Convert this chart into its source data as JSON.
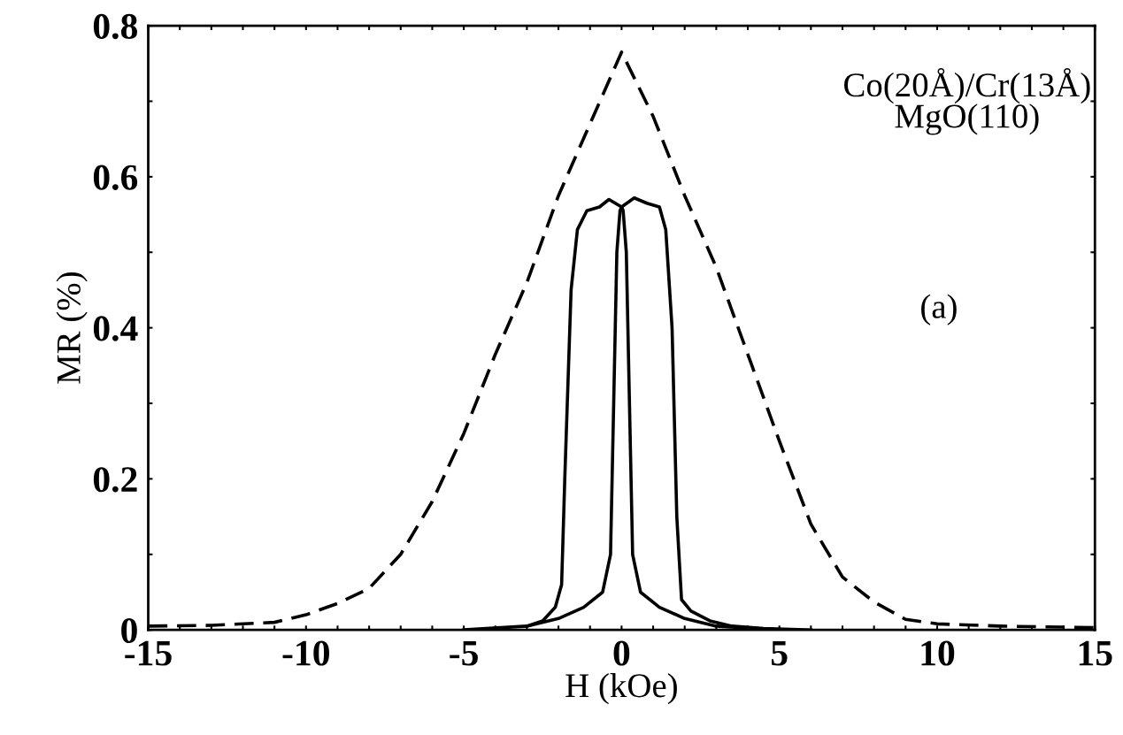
{
  "chart_data": {
    "type": "line",
    "xlabel": "H (kOe)",
    "ylabel": "MR (%)",
    "annotations": [
      "Co(20Å)/Cr(13Å)\nMgO(110)",
      "(a)"
    ],
    "xlim": [
      -15,
      15
    ],
    "ylim": [
      0,
      0.8
    ],
    "xticks": [
      -15,
      {
        "value": -14,
        "label": null
      },
      {
        "value": -13,
        "label": null
      },
      {
        "value": -12,
        "label": null
      },
      {
        "value": -11,
        "label": null
      },
      -10,
      {
        "value": -9,
        "label": null
      },
      {
        "value": -8,
        "label": null
      },
      {
        "value": -7,
        "label": null
      },
      {
        "value": -6,
        "label": null
      },
      -5,
      {
        "value": -4,
        "label": null
      },
      {
        "value": -3,
        "label": null
      },
      {
        "value": -2,
        "label": null
      },
      {
        "value": -1,
        "label": null
      },
      0,
      {
        "value": 1,
        "label": null
      },
      {
        "value": 2,
        "label": null
      },
      {
        "value": 3,
        "label": null
      },
      {
        "value": 4,
        "label": null
      },
      5,
      {
        "value": 6,
        "label": null
      },
      {
        "value": 7,
        "label": null
      },
      {
        "value": 8,
        "label": null
      },
      {
        "value": 9,
        "label": null
      },
      10,
      {
        "value": 11,
        "label": null
      },
      {
        "value": 12,
        "label": null
      },
      {
        "value": 13,
        "label": null
      },
      {
        "value": 14,
        "label": null
      },
      15
    ],
    "yticks": [
      0,
      {
        "value": 0.1,
        "label": null
      },
      0.2,
      {
        "value": 0.3,
        "label": null
      },
      0.4,
      {
        "value": 0.5,
        "label": null
      },
      0.6,
      {
        "value": 0.7,
        "label": null
      },
      0.8
    ],
    "grid": false,
    "legend": false,
    "series": [
      {
        "color": "#000000",
        "line_style": "dashed",
        "x": [
          -15,
          -13,
          -11,
          -10,
          -9,
          -8,
          -7,
          -6,
          -5,
          -4,
          -3,
          -2,
          -1,
          0,
          1,
          2,
          3,
          4,
          5,
          6,
          7,
          8,
          9,
          10,
          12,
          15
        ],
        "values": [
          0.005,
          0.006,
          0.01,
          0.02,
          0.035,
          0.055,
          0.1,
          0.17,
          0.26,
          0.365,
          0.46,
          0.575,
          0.67,
          0.765,
          0.68,
          0.575,
          0.48,
          0.365,
          0.25,
          0.14,
          0.07,
          0.037,
          0.014,
          0.008,
          0.005,
          0.003
        ]
      },
      {
        "color": "#000000",
        "line_style": "solid",
        "x": [
          -3,
          -2.5,
          -2.1,
          -1.9,
          -1.8,
          -1.6,
          -1.4,
          -1.1,
          -0.7,
          -0.4,
          0,
          0.4,
          0.8,
          1.2,
          1.4,
          1.6,
          1.75,
          1.9,
          2.2,
          2.8,
          3.5,
          4.5,
          6
        ],
        "values": [
          0.005,
          0.012,
          0.03,
          0.06,
          0.2,
          0.45,
          0.53,
          0.555,
          0.56,
          0.57,
          0.56,
          0.572,
          0.565,
          0.56,
          0.53,
          0.4,
          0.15,
          0.04,
          0.025,
          0.012,
          0.005,
          0.002,
          0.0
        ]
      },
      {
        "color": "#000000",
        "line_style": "solid",
        "x": [
          -5,
          -3,
          -2,
          -1.2,
          -0.6,
          -0.35,
          -0.25,
          -0.15,
          -0.05,
          0,
          0.05,
          0.15,
          0.25,
          0.35,
          0.6,
          1.2,
          2,
          3,
          5
        ],
        "values": [
          0.0,
          0.005,
          0.015,
          0.03,
          0.05,
          0.1,
          0.3,
          0.5,
          0.555,
          0.56,
          0.555,
          0.5,
          0.3,
          0.1,
          0.05,
          0.03,
          0.015,
          0.005,
          0.0
        ]
      }
    ]
  }
}
